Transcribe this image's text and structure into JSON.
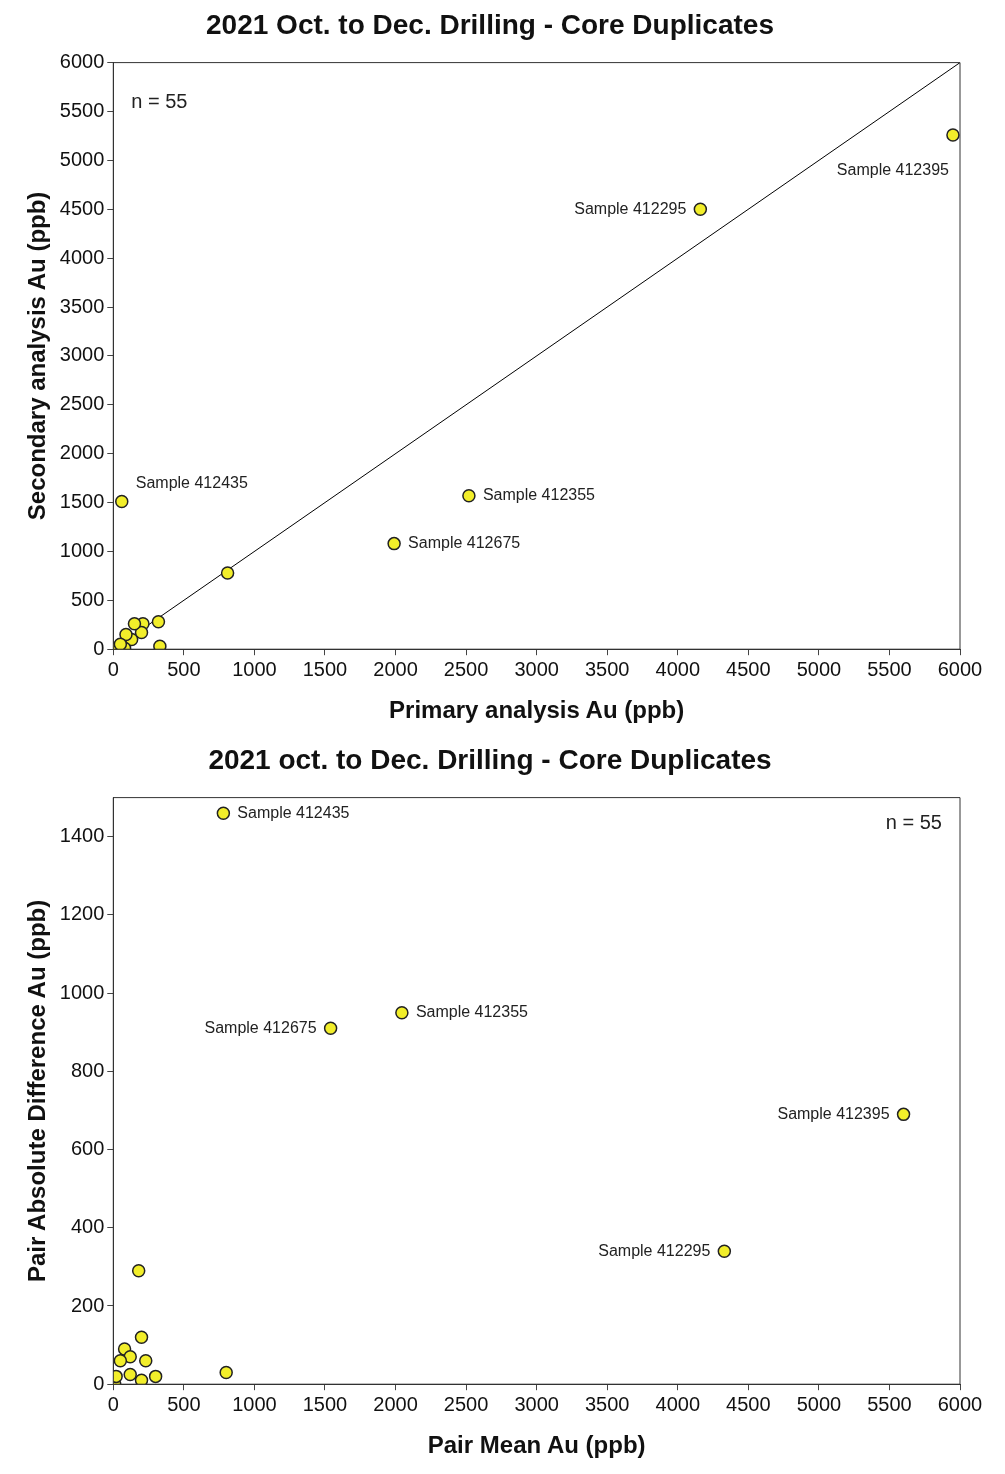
{
  "chart_data": [
    {
      "type": "scatter",
      "title": "2021 Oct. to Dec. Drilling - Core Duplicates",
      "xlabel": "Primary analysis Au (ppb)",
      "ylabel": "Secondary analysis Au (ppb)",
      "xlim": [
        0,
        6000
      ],
      "ylim": [
        0,
        6000
      ],
      "xticks": [
        0,
        500,
        1000,
        1500,
        2000,
        2500,
        3000,
        3500,
        4000,
        4500,
        5000,
        5500,
        6000
      ],
      "yticks": [
        0,
        500,
        1000,
        1500,
        2000,
        2500,
        3000,
        3500,
        4000,
        4500,
        5000,
        5500,
        6000
      ],
      "grid": false,
      "legend": false,
      "marker": "circle",
      "series": [
        {
          "type": "line",
          "marker": "none",
          "color": "#000000",
          "x": [
            0,
            6000
          ],
          "values": [
            0,
            6000
          ]
        },
        {
          "color": "#f2ee2a",
          "x": [
            5950,
            4160,
            2520,
            1990,
            60,
            810,
            330,
            320,
            210,
            200,
            150,
            130,
            90,
            80,
            10,
            30,
            50
          ],
          "values": [
            5260,
            4500,
            1570,
            1080,
            1510,
            780,
            30,
            280,
            260,
            170,
            260,
            100,
            150,
            10,
            0,
            null,
            50
          ]
        }
      ],
      "annotations": [
        "n = 55",
        {
          "text": "Sample 412395",
          "x": 5950,
          "y": 5260
        },
        {
          "text": "Sample 412295",
          "x": 4160,
          "y": 4500
        },
        {
          "text": "Sample 412355",
          "x": 2520,
          "y": 1570
        },
        {
          "text": "Sample 412675",
          "x": 1990,
          "y": 1080
        },
        {
          "text": "Sample 412435",
          "x": 60,
          "y": 1510
        }
      ]
    },
    {
      "type": "scatter",
      "title": "2021 oct. to Dec. Drilling - Core Duplicates",
      "xlabel": "Pair Mean Au (ppb)",
      "ylabel": "Pair Absolute Difference Au (ppb)",
      "xlim": [
        0,
        6000
      ],
      "ylim": [
        0,
        1500
      ],
      "xticks": [
        0,
        500,
        1000,
        1500,
        2000,
        2500,
        3000,
        3500,
        4000,
        4500,
        5000,
        5500,
        6000
      ],
      "yticks": [
        0,
        200,
        400,
        600,
        800,
        1000,
        1200,
        1400
      ],
      "grid": false,
      "legend": false,
      "marker": "circle",
      "series": [
        {
          "color": "#f2ee2a",
          "x": [
            780,
            1540,
            2045,
            5600,
            4330,
            180,
            200,
            800,
            230,
            300,
            200,
            80,
            120,
            50,
            120,
            10,
            20
          ],
          "values": [
            1460,
            910,
            950,
            690,
            340,
            290,
            120,
            30,
            60,
            20,
            10,
            90,
            70,
            60,
            25,
            0,
            20
          ]
        }
      ],
      "annotations": [
        "n = 55",
        {
          "text": "Sample 412435",
          "x": 780,
          "y": 1460
        },
        {
          "text": "Sample 412675",
          "x": 1540,
          "y": 910
        },
        {
          "text": "Sample 412355",
          "x": 2045,
          "y": 950
        },
        {
          "text": "Sample 412395",
          "x": 5600,
          "y": 690
        },
        {
          "text": "Sample 412295",
          "x": 4330,
          "y": 340
        }
      ]
    }
  ]
}
